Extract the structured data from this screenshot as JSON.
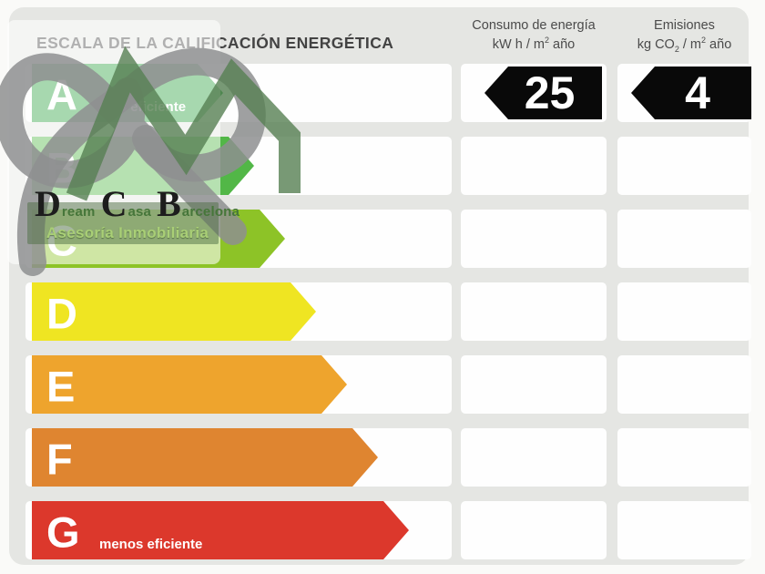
{
  "title": "ESCALA DE LA CALIFICACIÓN ENERGÉTICA",
  "headers": {
    "consumption": {
      "label": "Consumo de energía",
      "unit_pre": "kW h  / m",
      "unit_sup": "2",
      "unit_post": " año"
    },
    "emissions": {
      "label": "Emisiones",
      "unit_pre": "kg CO",
      "unit_sub": "2",
      "unit_mid": " / m",
      "unit_sup": "2",
      "unit_post": " año"
    }
  },
  "chart_data": {
    "type": "bar",
    "title": "ESCALA DE LA CALIFICACIÓN ENERGÉTICA",
    "orientation": "horizontal",
    "categories": [
      "A",
      "B",
      "C",
      "D",
      "E",
      "F",
      "G"
    ],
    "series": [
      {
        "name": "scale-arrow-length-px",
        "values": [
          235,
          269,
          303,
          337,
          371,
          405,
          439
        ]
      }
    ],
    "bar_colors": [
      "#2fa342",
      "#52b747",
      "#8dc327",
      "#efe522",
      "#eea42d",
      "#df8530",
      "#dc382c"
    ],
    "annotations": {
      "A": "más eficiente",
      "G": "menos eficiente"
    },
    "rated_values": {
      "grade": "A",
      "consumption_kwh_m2_year": 25,
      "emissions_kgco2_m2_year": 4
    },
    "legend_position": "none",
    "grid": false
  },
  "scale": {
    "rows": [
      {
        "grade": "A",
        "color": "#2fa342",
        "tip": 235,
        "note": "más eficiente"
      },
      {
        "grade": "B",
        "color": "#52b747",
        "tip": 269,
        "note": ""
      },
      {
        "grade": "C",
        "color": "#8dc327",
        "tip": 303,
        "note": ""
      },
      {
        "grade": "D",
        "color": "#efe522",
        "tip": 337,
        "note": ""
      },
      {
        "grade": "E",
        "color": "#eea42d",
        "tip": 371,
        "note": ""
      },
      {
        "grade": "F",
        "color": "#df8530",
        "tip": 405,
        "note": ""
      },
      {
        "grade": "G",
        "color": "#dc382c",
        "tip": 439,
        "note": "menos eficiente"
      }
    ],
    "performance": {
      "grade": "A",
      "consumption_value": "25",
      "emissions_value": "4",
      "tag_color": "#090909"
    }
  },
  "watermark": {
    "name_parts": [
      {
        "big": "D",
        "small": "ream"
      },
      {
        "big": "C",
        "small": "asa"
      },
      {
        "big": "B",
        "small": "arcelona"
      }
    ],
    "tagline": "Asesoría Inmobiliaria",
    "ribbon_gray": "#8e8f90",
    "ribbon_green": "#567f52"
  },
  "colors": {
    "panel": "#e5e6e3",
    "cell": "#fefefe",
    "page": "#fafaf8",
    "title_text": "#434343"
  }
}
